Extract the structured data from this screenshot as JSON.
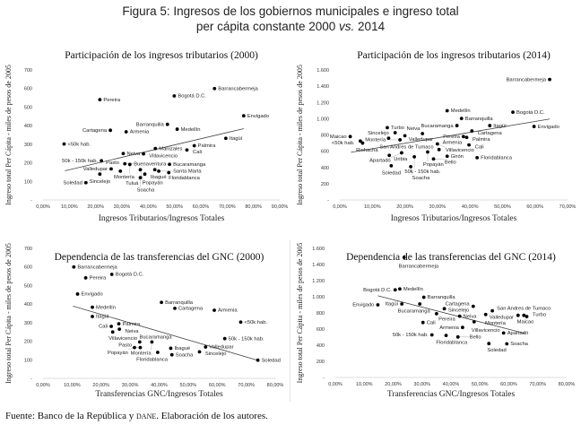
{
  "figure": {
    "title_line1": "Figura 5: Ingresos de los gobiernos municipales e ingreso total",
    "title_line2a": "per cápita constante 2000 ",
    "title_vs": "vs.",
    "title_line2b": " 2014"
  },
  "footer": {
    "text_a": "Fuente: Banco de la República y ",
    "text_dane": "dane",
    "text_b": ". Elaboración de los autores."
  },
  "chart_data": [
    {
      "type": "scatter",
      "title": "Participación de los ingresos tributarios (2000)",
      "xlabel": "Ingresos Tributarios/Ingresos Totales",
      "ylabel": "Ingreso total Per Cápita - miles de pesos de 2005",
      "xlim": [
        0,
        90
      ],
      "ylim": [
        0,
        700
      ],
      "xticks": [
        "0,00%",
        "10,00%",
        "20,00%",
        "30,00%",
        "40,00%",
        "50,00%",
        "60,00%",
        "70,00%",
        "80,00%",
        "90,00%"
      ],
      "yticks": [
        "-",
        "100",
        "200",
        "300",
        "400",
        "500",
        "600",
        "700"
      ],
      "trend": [
        [
          8.3,
          157
        ],
        [
          76.3,
          384
        ]
      ],
      "points": [
        [
          "Barrancabermeja",
          65.2,
          600
        ],
        [
          "Bogotá D.C.",
          49.9,
          560
        ],
        [
          "Pereira",
          21.6,
          540
        ],
        [
          "Envigado",
          76.3,
          453
        ],
        [
          "Barranquilla",
          47.3,
          407
        ],
        [
          "Medellín",
          51.0,
          381
        ],
        [
          "Cartagena",
          25.6,
          375
        ],
        [
          "Armenia",
          31.6,
          367
        ],
        [
          "Itagüí",
          69.5,
          332
        ],
        [
          "<50k hab.",
          8.0,
          301
        ],
        [
          "Palmira",
          57.5,
          292
        ],
        [
          "Manizales",
          42.7,
          277
        ],
        [
          "Cali",
          54.7,
          269
        ],
        [
          "Neiva",
          30.5,
          250
        ],
        [
          "Villavicencio",
          38.2,
          248
        ],
        [
          "50k - 150k hab.",
          22.2,
          211
        ],
        [
          "Buenaventura",
          31.1,
          195
        ],
        [
          "Montería",
          33.0,
          191
        ],
        [
          "Bucaramanga",
          48.1,
          192
        ],
        [
          "Valledupar",
          25.9,
          167
        ],
        [
          "Pasto",
          29.4,
          155
        ],
        [
          "Ibagué",
          42.5,
          163
        ],
        [
          "Popayán",
          37.0,
          163
        ],
        [
          "Santa Marta",
          44.0,
          155
        ],
        [
          "Floridablanca",
          47.8,
          147
        ],
        [
          "Sincelejo",
          21.6,
          139
        ],
        [
          "Tuluá",
          38.7,
          139
        ],
        [
          "Soacha",
          37.0,
          120
        ],
        [
          "Soledad",
          16.3,
          93
        ]
      ]
    },
    {
      "type": "scatter",
      "title": "Participación de los ingresos tributarios (2014)",
      "xlabel": "Ingresos Tributarios/Ingresos Totales",
      "ylabel": "Ingreso total Per Cápita - miles de pesos de 2005",
      "xlim": [
        0,
        70
      ],
      "ylim": [
        0,
        1600
      ],
      "xticks": [
        "0,00%",
        "10,00%",
        "20,00%",
        "30,00%",
        "40,00%",
        "50,00%",
        "60,00%",
        "70,00%"
      ],
      "yticks": [
        "-",
        "200",
        "400",
        "600",
        "800",
        "1.000",
        "1.200",
        "1.400",
        "1.600"
      ],
      "trend": [
        [
          3.4,
          586
        ],
        [
          64.5,
          996
        ]
      ],
      "points": [
        [
          "Barrancabermeja",
          64.5,
          1483
        ],
        [
          "Medellín",
          33.0,
          1098
        ],
        [
          "Bogotá D.C.",
          53.2,
          1080
        ],
        [
          "Barranquilla",
          37.4,
          1003
        ],
        [
          "Bucaramanga",
          36.0,
          915
        ],
        [
          "Itagüí",
          46.1,
          915
        ],
        [
          "Envigado",
          59.7,
          904
        ],
        [
          "Turbo",
          14.6,
          890
        ],
        [
          "Sincelejo",
          17.0,
          827
        ],
        [
          "Cartagena",
          40.6,
          849
        ],
        [
          "Maicao",
          3.2,
          780
        ],
        [
          "Valledupar",
          20.0,
          790
        ],
        [
          "Neiva",
          25.4,
          816
        ],
        [
          "San Andres de Tumaco",
          15.0,
          760
        ],
        [
          "Montería",
          18.5,
          740
        ],
        [
          "Riohacha",
          7.0,
          700
        ],
        [
          "Villavicencio",
          30.0,
          690
        ],
        [
          "Pereira",
          38.0,
          780
        ],
        [
          "Palmira",
          39.0,
          770
        ],
        [
          "Cali",
          39.7,
          677
        ],
        [
          "<50k hab.",
          6.3,
          725
        ],
        [
          "Uribia",
          15.2,
          549
        ],
        [
          "Apartadó",
          19.0,
          580
        ],
        [
          "Popayán",
          27.0,
          590
        ],
        [
          "Armenia",
          30.5,
          620
        ],
        [
          "50k - 150k hab.",
          22.9,
          531
        ],
        [
          "Soledad",
          15.8,
          421
        ],
        [
          "Soacha",
          21.8,
          410
        ],
        [
          "Bello",
          28.8,
          505
        ],
        [
          "Girón",
          33.0,
          538
        ],
        [
          "Floridablanca",
          42.2,
          520
        ]
      ]
    },
    {
      "type": "scatter",
      "title": "Dependencia de las transferencias del GNC (2000)",
      "xlabel": "Transferencias GNC/Ingresos Totales",
      "ylabel": "Ingreso total Per Cápita - miles de pesos de 2005",
      "xlim": [
        0,
        80
      ],
      "ylim": [
        0,
        700
      ],
      "xticks": [
        "0,00%",
        "10,00%",
        "20,00%",
        "30,00%",
        "40,00%",
        "50,00%",
        "60,00%",
        "70,00%",
        "80,00%"
      ],
      "yticks": [
        "-",
        "100",
        "200",
        "300",
        "400",
        "500",
        "600",
        "700"
      ],
      "trend": [
        [
          10.3,
          389
        ],
        [
          74.0,
          97
        ]
      ],
      "points": [
        [
          "Barrancabermeja",
          10.6,
          600
        ],
        [
          "Bogotá D.C.",
          23.7,
          560
        ],
        [
          "Pereira",
          14.7,
          541
        ],
        [
          "Envigado",
          11.9,
          454
        ],
        [
          "Barranquilla",
          40.8,
          409
        ],
        [
          "Medellín",
          17.0,
          383
        ],
        [
          "Cartagena",
          45.4,
          377
        ],
        [
          "Armenia",
          59.0,
          367
        ],
        [
          "Itagüí",
          17.0,
          333
        ],
        [
          "<50k hab.",
          68.1,
          303
        ],
        [
          "Palmira",
          26.1,
          294
        ],
        [
          "Cali",
          23.5,
          280
        ],
        [
          "Neiva",
          26.3,
          265
        ],
        [
          "Villavicencio",
          24.0,
          250
        ],
        [
          "50k - 150k hab.",
          62.6,
          214
        ],
        [
          "Bucaramanga",
          33.3,
          196
        ],
        [
          "Montería",
          37.5,
          196
        ],
        [
          "Valledupar",
          56.0,
          169
        ],
        [
          "Pasto",
          33.5,
          166
        ],
        [
          "Popayán",
          31.5,
          166
        ],
        [
          "Ibagué",
          44.0,
          162
        ],
        [
          "Sincelejo",
          53.9,
          143
        ],
        [
          "Floridablanca",
          39.5,
          140
        ],
        [
          "Soacha",
          44.4,
          127
        ],
        [
          "Soledad",
          74.0,
          98
        ]
      ]
    },
    {
      "type": "scatter",
      "title": "Dependencia de las transferencias del GNC (2014)",
      "xlabel": "Transferencias GNC/Ingresos Totales",
      "ylabel": "Ingreso total Per Cápita - miles de pesos de 2005",
      "xlim": [
        0,
        80
      ],
      "ylim": [
        0,
        1600
      ],
      "xticks": [
        "0,00%",
        "10,00%",
        "20,00%",
        "30,00%",
        "40,00%",
        "50,00%",
        "60,00%",
        "70,00%",
        "80,00%"
      ],
      "yticks": [
        "-",
        "200",
        "400",
        "600",
        "800",
        "1.000",
        "1.200",
        "1.400",
        "1.600"
      ],
      "trend": [
        [
          14.7,
          1012
        ],
        [
          65.5,
          547
        ]
      ],
      "points": [
        [
          "Barrancabermeja",
          23.8,
          1489
        ],
        [
          "Bogotá D.C.",
          20.7,
          1086
        ],
        [
          "Medellín",
          22.3,
          1097
        ],
        [
          "Barranquilla",
          30.6,
          994
        ],
        [
          "Envigado",
          14.7,
          900
        ],
        [
          "Itagüí",
          23.0,
          911
        ],
        [
          "Bucaramanga",
          29.2,
          911
        ],
        [
          "Cartagena",
          37.7,
          852
        ],
        [
          "Sincelejo",
          47.7,
          882
        ],
        [
          "Valledupar",
          54.3,
          826
        ],
        [
          "Maicao",
          63.2,
          770
        ],
        [
          "San Andres de Tumaco",
          65.2,
          770
        ],
        [
          "Turbo",
          66.2,
          755
        ],
        [
          "Pereira",
          35.0,
          790
        ],
        [
          "Neiva",
          43.0,
          760
        ],
        [
          "Montería",
          52.0,
          780
        ],
        [
          "Villavicencio",
          48.0,
          690
        ],
        [
          "Cali",
          30.3,
          681
        ],
        [
          "Apartadó",
          58.2,
          551
        ],
        [
          "Armenia",
          44.0,
          620
        ],
        [
          "50k - 150k hab.",
          33.4,
          528
        ],
        [
          "Floridablanca",
          38.3,
          521
        ],
        [
          "Bello",
          42.4,
          502
        ],
        [
          "Soledad",
          53.1,
          420
        ],
        [
          "Soacha",
          59.3,
          417
        ]
      ]
    }
  ]
}
